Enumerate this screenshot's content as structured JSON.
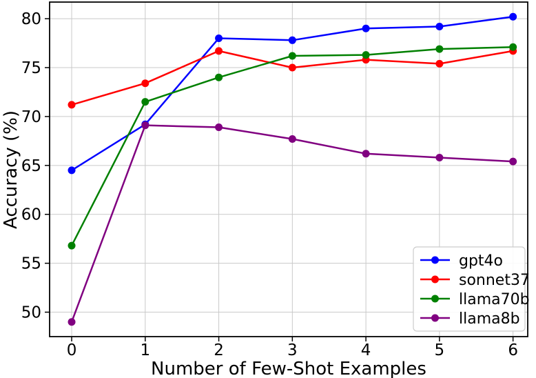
{
  "chart_data": {
    "type": "line",
    "title": "",
    "xlabel": "Number of Few-Shot Examples",
    "ylabel": "Accuracy (%)",
    "x": [
      0,
      1,
      2,
      3,
      4,
      5,
      6
    ],
    "series": [
      {
        "name": "gpt4o",
        "color": "#0000ff",
        "values": [
          64.5,
          69.2,
          78.0,
          77.8,
          79.0,
          79.2,
          80.2
        ]
      },
      {
        "name": "sonnet37",
        "color": "#ff0000",
        "values": [
          71.2,
          73.4,
          76.7,
          75.0,
          75.8,
          75.4,
          76.7
        ]
      },
      {
        "name": "llama70b",
        "color": "#008000",
        "values": [
          56.8,
          71.5,
          74.0,
          76.2,
          76.3,
          76.9,
          77.1
        ]
      },
      {
        "name": "llama8b",
        "color": "#800080",
        "values": [
          49.0,
          69.1,
          68.9,
          67.7,
          66.2,
          65.8,
          65.4
        ]
      }
    ],
    "xticks": [
      0,
      1,
      2,
      3,
      4,
      5,
      6
    ],
    "yticks": [
      50,
      55,
      60,
      65,
      70,
      75,
      80
    ],
    "xlim": [
      -0.3,
      6.2
    ],
    "ylim": [
      47.5,
      81.7
    ],
    "grid": true,
    "grid_color": "#c9c9c9",
    "spine_color": "#000000",
    "background": "#ffffff",
    "marker": "circle",
    "marker_radius": 5.5,
    "line_width": 2.5,
    "legend_position": "lower right"
  }
}
